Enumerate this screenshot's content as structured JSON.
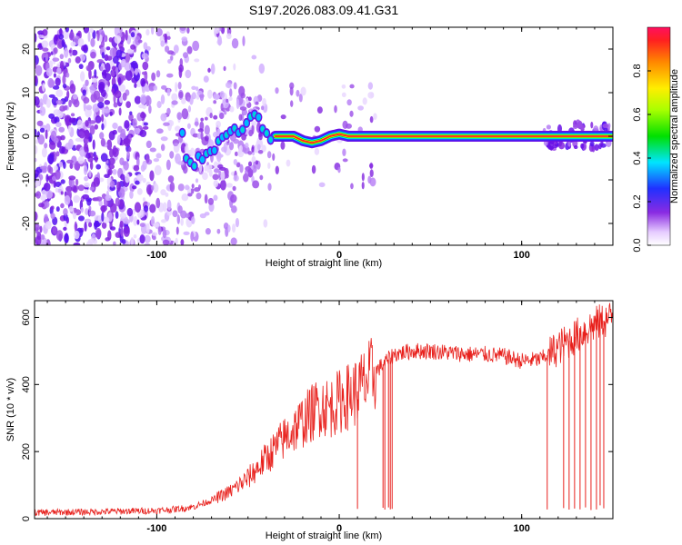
{
  "title": "S197.2026.083.09.41.G31",
  "chart_data": [
    {
      "type": "heatmap",
      "title": "S197.2026.083.09.41.G31",
      "xlabel": "Height of straight line (km)",
      "ylabel": "Frequency (Hz)",
      "xlim": [
        -167,
        150
      ],
      "ylim": [
        -25,
        25
      ],
      "xticks": [
        -100,
        0,
        100
      ],
      "xtick_labels": [
        "-100",
        "0",
        "100"
      ],
      "yticks": [
        -20,
        -10,
        0,
        10,
        20
      ],
      "ytick_labels": [
        "-20",
        "-10",
        "0",
        "10",
        "20"
      ],
      "colorbar": {
        "label": "Normalized spectral amplitude",
        "range": [
          0,
          1
        ],
        "ticks": [
          0.0,
          0.2,
          0.4,
          0.6,
          0.8
        ],
        "tick_labels": [
          "0.0",
          "0.2",
          "0.4",
          "0.6",
          "0.8"
        ],
        "colormap": "rainbow (white → violet → blue → cyan → green → yellow → orange → red)"
      },
      "ridge": {
        "description": "Dominant spectral line near 0 Hz, diffuse noise below about -90 km",
        "x": [
          -85,
          -80,
          -75,
          -70,
          -65,
          -60,
          -55,
          -50,
          -45,
          -40,
          -35,
          -30,
          -25,
          -20,
          -15,
          -10,
          -5,
          0,
          5,
          10,
          20,
          150
        ],
        "y": [
          -4,
          -6,
          -5,
          -3,
          -1,
          2,
          1,
          3,
          5,
          0,
          0,
          0,
          0,
          -1,
          -1.5,
          -1,
          0,
          0.5,
          0,
          0,
          0,
          0
        ]
      }
    },
    {
      "type": "line",
      "xlabel": "Height of straight line (km)",
      "ylabel": "SNR (10 * v/v)",
      "xlim": [
        -167,
        150
      ],
      "ylim": [
        0,
        650
      ],
      "xticks": [
        -100,
        0,
        100
      ],
      "xtick_labels": [
        "-100",
        "0",
        "100"
      ],
      "yticks": [
        0,
        200,
        400,
        600
      ],
      "ytick_labels": [
        "0",
        "200",
        "400",
        "600"
      ],
      "series": [
        {
          "name": "SNR",
          "color": "#e8201c",
          "x": [
            -167,
            -140,
            -120,
            -100,
            -90,
            -80,
            -70,
            -60,
            -50,
            -40,
            -30,
            -20,
            -10,
            -5,
            0,
            10,
            20,
            30,
            40,
            50,
            60,
            70,
            80,
            90,
            100,
            110,
            115,
            120,
            130,
            140,
            150
          ],
          "y": [
            18,
            20,
            22,
            24,
            28,
            35,
            55,
            80,
            120,
            180,
            240,
            290,
            340,
            330,
            350,
            380,
            440,
            490,
            500,
            500,
            495,
            490,
            490,
            485,
            470,
            475,
            490,
            510,
            545,
            580,
            600
          ],
          "dropouts_x": [
            10,
            24,
            25,
            27,
            28,
            29,
            114,
            123,
            126,
            129,
            132,
            135,
            138,
            141,
            143,
            145
          ]
        }
      ]
    }
  ]
}
